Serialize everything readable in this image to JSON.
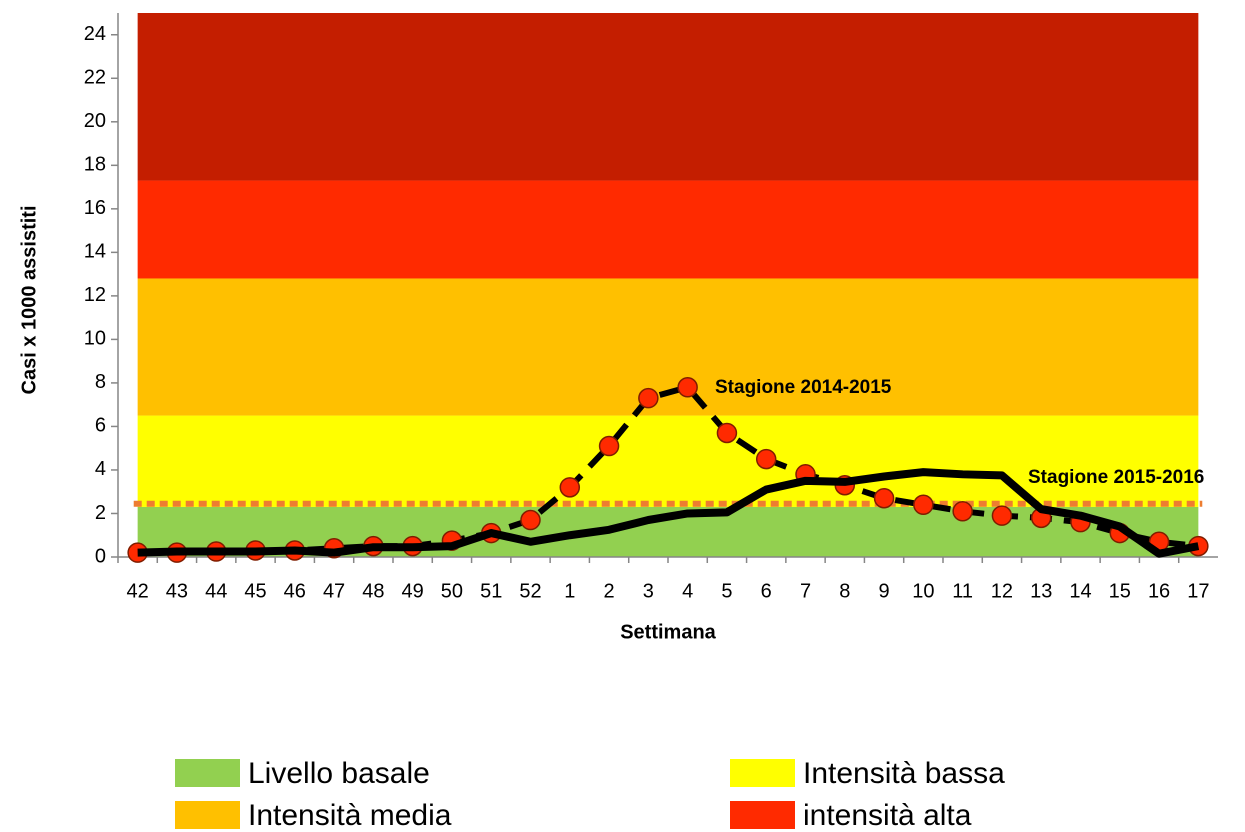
{
  "chart_data": {
    "type": "line",
    "x_label": "Settimana",
    "y_label": "Casi x 1000 assistiti",
    "categories": [
      "42",
      "43",
      "44",
      "45",
      "46",
      "47",
      "48",
      "49",
      "50",
      "51",
      "52",
      "1",
      "2",
      "3",
      "4",
      "5",
      "6",
      "7",
      "8",
      "9",
      "10",
      "11",
      "12",
      "13",
      "14",
      "15",
      "16",
      "17"
    ],
    "ylim": [
      0,
      25
    ],
    "yticks": [
      0,
      2,
      4,
      6,
      8,
      10,
      12,
      14,
      16,
      18,
      20,
      22,
      24
    ],
    "bands": [
      {
        "name": "Livello basale",
        "color": "#92d050",
        "from": 0,
        "to": 2.3
      },
      {
        "name": "Intensità bassa",
        "color": "#ffff00",
        "from": 2.3,
        "to": 6.5
      },
      {
        "name": "Intensità media",
        "color": "#ffc000",
        "from": 6.5,
        "to": 12.8
      },
      {
        "name": "intensità alta",
        "color": "#ff2a00",
        "from": 12.8,
        "to": 17.3
      },
      {
        "color": "#c41e00",
        "from": 17.3,
        "to": 25
      }
    ],
    "threshold": {
      "value": 2.45,
      "color": "#ed7d31"
    },
    "series": [
      {
        "name": "Stagione 2014-2015",
        "color": "#000000",
        "line_style": "dashed",
        "marker": "circle",
        "marker_color": "#ff2a00",
        "values": [
          0.2,
          0.2,
          0.25,
          0.3,
          0.3,
          0.4,
          0.5,
          0.5,
          0.75,
          1.1,
          1.7,
          3.2,
          5.1,
          7.3,
          7.8,
          5.7,
          4.5,
          3.8,
          3.3,
          2.7,
          2.4,
          2.1,
          1.9,
          1.8,
          1.6,
          1.1,
          0.7,
          0.5
        ]
      },
      {
        "name": "Stagione 2015-2016",
        "color": "#000000",
        "line_style": "solid",
        "values": [
          0.2,
          0.25,
          0.25,
          0.25,
          0.3,
          0.2,
          0.45,
          0.45,
          0.5,
          1.1,
          0.7,
          1.0,
          1.25,
          1.7,
          2.0,
          2.05,
          3.1,
          3.5,
          3.45,
          3.7,
          3.9,
          3.8,
          3.75,
          2.2,
          1.9,
          1.4,
          0.15,
          0.5
        ]
      }
    ]
  }
}
